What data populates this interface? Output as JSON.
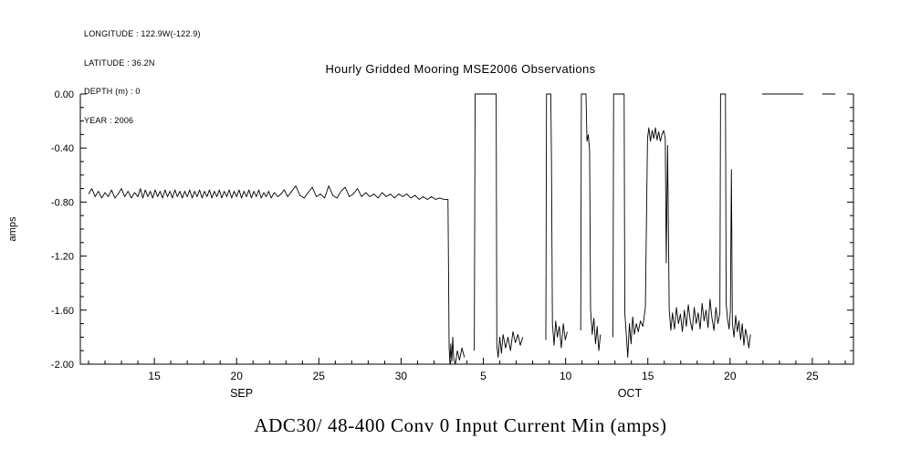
{
  "metadata": {
    "longitude": "LONGITUDE : 122.9W(-122.9)",
    "latitude": "LATITUDE : 36.2N",
    "depth": "DEPTH (m) : 0",
    "year": "YEAR : 2006"
  },
  "chart_data": {
    "type": "line",
    "title": "Hourly Gridded Mooring MSE2006 Observations",
    "caption": "ADC30/ 48-400 Conv 0 Input Current  Min (amps)",
    "ylabel": "amps",
    "xlabel": "",
    "ylim": [
      -2.0,
      0.0
    ],
    "xlim": [
      10.5,
      57.5
    ],
    "grid": false,
    "legend": false,
    "line_color": "#000000",
    "yticks": [
      {
        "v": 0.0,
        "label": "0.00"
      },
      {
        "v": -0.4,
        "label": "-0.40"
      },
      {
        "v": -0.8,
        "label": "-0.80"
      },
      {
        "v": -1.2,
        "label": "-1.20"
      },
      {
        "v": -1.6,
        "label": "-1.60"
      },
      {
        "v": -2.0,
        "label": "-2.00"
      }
    ],
    "y_minor_step": 0.1,
    "xticks": [
      {
        "day": 15,
        "label": "15"
      },
      {
        "day": 20,
        "label": "20"
      },
      {
        "day": 25,
        "label": "25"
      },
      {
        "day": 30,
        "label": "30"
      },
      {
        "day": 35,
        "label": "5"
      },
      {
        "day": 40,
        "label": "10"
      },
      {
        "day": 45,
        "label": "15"
      },
      {
        "day": 50,
        "label": "20"
      },
      {
        "day": 55,
        "label": "25"
      }
    ],
    "x_minor_step": 1,
    "month_labels": [
      {
        "day": 20.3,
        "label": "SEP"
      },
      {
        "day": 43.9,
        "label": "OCT"
      }
    ],
    "series": [
      {
        "name": "ADC30/ 48-400 Conv 0 Input Current Min (amps)",
        "color": "#000000",
        "points": [
          [
            11.0,
            -0.74
          ],
          [
            11.2,
            -0.7
          ],
          [
            11.4,
            -0.76
          ],
          [
            11.6,
            -0.72
          ],
          [
            11.8,
            -0.77
          ],
          [
            12.0,
            -0.73
          ],
          [
            12.2,
            -0.76
          ],
          [
            12.4,
            -0.71
          ],
          [
            12.6,
            -0.77
          ],
          [
            12.8,
            -0.74
          ],
          [
            13.0,
            -0.7
          ],
          [
            13.2,
            -0.76
          ],
          [
            13.4,
            -0.72
          ],
          [
            13.6,
            -0.77
          ],
          [
            13.8,
            -0.73
          ],
          [
            14.0,
            -0.76
          ],
          [
            14.15,
            -0.7
          ],
          [
            14.3,
            -0.77
          ],
          [
            14.45,
            -0.71
          ],
          [
            14.6,
            -0.76
          ],
          [
            14.75,
            -0.72
          ],
          [
            14.9,
            -0.77
          ],
          [
            15.05,
            -0.71
          ],
          [
            15.2,
            -0.76
          ],
          [
            15.35,
            -0.72
          ],
          [
            15.5,
            -0.77
          ],
          [
            15.65,
            -0.71
          ],
          [
            15.8,
            -0.76
          ],
          [
            15.95,
            -0.72
          ],
          [
            16.1,
            -0.77
          ],
          [
            16.25,
            -0.71
          ],
          [
            16.4,
            -0.76
          ],
          [
            16.55,
            -0.72
          ],
          [
            16.7,
            -0.77
          ],
          [
            16.85,
            -0.72
          ],
          [
            17.0,
            -0.76
          ],
          [
            17.15,
            -0.71
          ],
          [
            17.3,
            -0.77
          ],
          [
            17.45,
            -0.72
          ],
          [
            17.6,
            -0.76
          ],
          [
            17.75,
            -0.71
          ],
          [
            17.9,
            -0.77
          ],
          [
            18.05,
            -0.72
          ],
          [
            18.2,
            -0.76
          ],
          [
            18.35,
            -0.71
          ],
          [
            18.5,
            -0.77
          ],
          [
            18.65,
            -0.72
          ],
          [
            18.8,
            -0.76
          ],
          [
            18.95,
            -0.71
          ],
          [
            19.1,
            -0.77
          ],
          [
            19.25,
            -0.72
          ],
          [
            19.4,
            -0.76
          ],
          [
            19.55,
            -0.71
          ],
          [
            19.7,
            -0.77
          ],
          [
            19.85,
            -0.72
          ],
          [
            20.0,
            -0.76
          ],
          [
            20.15,
            -0.71
          ],
          [
            20.3,
            -0.77
          ],
          [
            20.45,
            -0.72
          ],
          [
            20.6,
            -0.76
          ],
          [
            20.75,
            -0.71
          ],
          [
            20.9,
            -0.77
          ],
          [
            21.05,
            -0.72
          ],
          [
            21.2,
            -0.76
          ],
          [
            21.35,
            -0.71
          ],
          [
            21.5,
            -0.77
          ],
          [
            21.65,
            -0.73
          ],
          [
            21.8,
            -0.76
          ],
          [
            21.95,
            -0.72
          ],
          [
            22.1,
            -0.77
          ],
          [
            22.3,
            -0.73
          ],
          [
            22.5,
            -0.76
          ],
          [
            22.7,
            -0.74
          ],
          [
            22.9,
            -0.71
          ],
          [
            23.1,
            -0.76
          ],
          [
            23.35,
            -0.72
          ],
          [
            23.6,
            -0.68
          ],
          [
            23.85,
            -0.75
          ],
          [
            24.1,
            -0.77
          ],
          [
            24.35,
            -0.73
          ],
          [
            24.6,
            -0.69
          ],
          [
            24.85,
            -0.76
          ],
          [
            25.1,
            -0.74
          ],
          [
            25.35,
            -0.77
          ],
          [
            25.6,
            -0.68
          ],
          [
            25.85,
            -0.75
          ],
          [
            26.1,
            -0.77
          ],
          [
            26.35,
            -0.72
          ],
          [
            26.6,
            -0.69
          ],
          [
            26.85,
            -0.76
          ],
          [
            27.1,
            -0.74
          ],
          [
            27.35,
            -0.7
          ],
          [
            27.6,
            -0.76
          ],
          [
            27.85,
            -0.73
          ],
          [
            28.1,
            -0.76
          ],
          [
            28.35,
            -0.74
          ],
          [
            28.6,
            -0.77
          ],
          [
            28.85,
            -0.73
          ],
          [
            29.1,
            -0.76
          ],
          [
            29.35,
            -0.74
          ],
          [
            29.6,
            -0.77
          ],
          [
            29.85,
            -0.74
          ],
          [
            30.1,
            -0.76
          ],
          [
            30.35,
            -0.74
          ],
          [
            30.6,
            -0.77
          ],
          [
            30.85,
            -0.75
          ],
          [
            31.1,
            -0.78
          ],
          [
            31.35,
            -0.76
          ],
          [
            31.6,
            -0.78
          ],
          [
            31.85,
            -0.76
          ],
          [
            32.1,
            -0.78
          ],
          [
            32.35,
            -0.77
          ],
          [
            32.6,
            -0.78
          ],
          [
            32.85,
            -0.78
          ],
          [
            32.92,
            -1.88
          ],
          [
            32.97,
            -2.0
          ],
          [
            33.02,
            -1.85
          ],
          [
            33.08,
            -1.98
          ],
          [
            33.14,
            -1.8
          ],
          [
            33.2,
            -1.96
          ],
          [
            33.3,
            -2.0
          ],
          [
            33.42,
            -1.9
          ],
          [
            33.55,
            -1.97
          ],
          [
            33.7,
            -1.88
          ],
          [
            33.85,
            -1.95
          ],
          null,
          [
            34.45,
            -1.9
          ],
          [
            34.5,
            0.0
          ],
          [
            35.1,
            0.0
          ],
          [
            35.78,
            0.0
          ],
          [
            35.82,
            -1.86
          ],
          [
            35.9,
            -1.95
          ],
          [
            36.0,
            -1.8
          ],
          [
            36.1,
            -1.92
          ],
          [
            36.2,
            -1.78
          ],
          [
            36.35,
            -1.88
          ],
          [
            36.5,
            -1.8
          ],
          [
            36.65,
            -1.9
          ],
          [
            36.8,
            -1.76
          ],
          [
            36.95,
            -1.84
          ],
          [
            37.1,
            -1.78
          ],
          [
            37.25,
            -1.86
          ],
          [
            37.4,
            -1.8
          ],
          null,
          [
            38.8,
            -1.82
          ],
          [
            38.84,
            0.0
          ],
          [
            39.1,
            0.0
          ],
          [
            39.14,
            -0.46
          ],
          [
            39.2,
            -1.7
          ],
          [
            39.3,
            -1.86
          ],
          [
            39.4,
            -1.68
          ],
          [
            39.5,
            -1.8
          ],
          [
            39.62,
            -1.72
          ],
          [
            39.74,
            -1.88
          ],
          [
            39.86,
            -1.7
          ],
          [
            39.98,
            -1.82
          ],
          [
            40.1,
            -1.76
          ],
          null,
          [
            40.92,
            -1.75
          ],
          [
            40.96,
            0.0
          ],
          [
            41.24,
            0.0
          ],
          [
            41.3,
            -0.35
          ],
          [
            41.38,
            -0.3
          ],
          [
            41.46,
            -0.42
          ],
          [
            41.52,
            -1.6
          ],
          [
            41.62,
            -1.78
          ],
          [
            41.72,
            -1.66
          ],
          [
            41.82,
            -1.85
          ],
          [
            41.92,
            -1.72
          ],
          [
            42.02,
            -1.9
          ],
          [
            42.12,
            -1.78
          ],
          null,
          [
            42.88,
            -1.8
          ],
          [
            42.92,
            0.0
          ],
          [
            43.3,
            0.0
          ],
          [
            43.56,
            0.0
          ],
          [
            43.6,
            -1.62
          ],
          [
            43.7,
            -1.8
          ],
          [
            43.78,
            -1.95
          ],
          [
            43.88,
            -1.7
          ],
          [
            43.98,
            -1.85
          ],
          [
            44.08,
            -1.65
          ],
          [
            44.18,
            -1.78
          ],
          [
            44.3,
            -1.7
          ],
          [
            44.42,
            -1.76
          ],
          [
            44.55,
            -1.68
          ],
          [
            44.7,
            -1.72
          ],
          [
            44.85,
            -1.58
          ],
          [
            44.98,
            -0.33
          ],
          [
            45.06,
            -0.25
          ],
          [
            45.16,
            -0.35
          ],
          [
            45.26,
            -0.27
          ],
          [
            45.36,
            -0.33
          ],
          [
            45.46,
            -0.25
          ],
          [
            45.56,
            -0.34
          ],
          [
            45.66,
            -0.28
          ],
          [
            45.76,
            -0.35
          ],
          [
            45.86,
            -0.3
          ],
          [
            45.96,
            -0.27
          ],
          [
            46.06,
            -0.33
          ],
          [
            46.12,
            -1.25
          ],
          [
            46.2,
            -0.38
          ],
          [
            46.3,
            -1.6
          ],
          [
            46.4,
            -1.75
          ],
          [
            46.5,
            -1.62
          ],
          [
            46.62,
            -1.74
          ],
          [
            46.74,
            -1.58
          ],
          [
            46.86,
            -1.7
          ],
          [
            46.98,
            -1.63
          ],
          [
            47.1,
            -1.76
          ],
          [
            47.22,
            -1.6
          ],
          [
            47.34,
            -1.72
          ],
          [
            47.46,
            -1.56
          ],
          [
            47.58,
            -1.68
          ],
          [
            47.7,
            -1.75
          ],
          [
            47.82,
            -1.58
          ],
          [
            47.94,
            -1.7
          ],
          [
            48.06,
            -1.62
          ],
          [
            48.18,
            -1.74
          ],
          [
            48.3,
            -1.55
          ],
          [
            48.42,
            -1.68
          ],
          [
            48.54,
            -1.6
          ],
          [
            48.66,
            -1.73
          ],
          [
            48.78,
            -1.52
          ],
          [
            48.9,
            -1.66
          ],
          [
            49.02,
            -1.75
          ],
          [
            49.14,
            -1.58
          ],
          [
            49.26,
            -1.7
          ],
          [
            49.38,
            -1.62
          ],
          [
            49.42,
            0.0
          ],
          [
            49.72,
            0.0
          ],
          [
            49.76,
            -1.55
          ],
          [
            49.84,
            -1.66
          ],
          [
            49.94,
            -1.74
          ],
          [
            50.02,
            -1.6
          ],
          [
            50.08,
            -0.56
          ],
          [
            50.14,
            -1.7
          ],
          [
            50.24,
            -1.8
          ],
          [
            50.34,
            -1.64
          ],
          [
            50.44,
            -1.76
          ],
          [
            50.54,
            -1.68
          ],
          [
            50.64,
            -1.82
          ],
          [
            50.74,
            -1.7
          ],
          [
            50.84,
            -1.86
          ],
          [
            50.94,
            -1.74
          ],
          [
            51.04,
            -1.8
          ],
          [
            51.14,
            -1.88
          ],
          [
            51.24,
            -1.78
          ],
          null,
          [
            51.95,
            0.0
          ],
          [
            53.2,
            0.0
          ],
          [
            54.45,
            0.0
          ],
          null,
          [
            55.6,
            0.0
          ],
          [
            56.0,
            0.0
          ],
          [
            56.4,
            0.0
          ]
        ]
      }
    ]
  }
}
